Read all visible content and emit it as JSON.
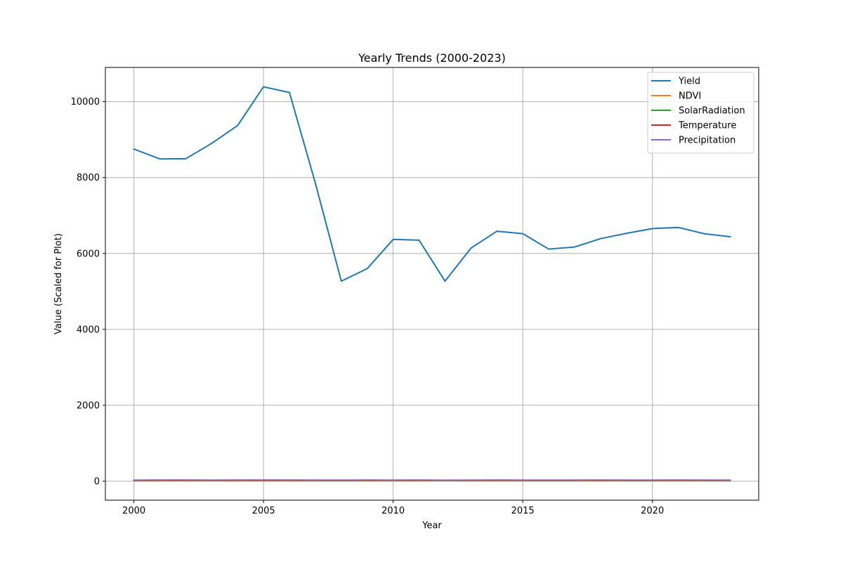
{
  "chart_data": {
    "type": "line",
    "title": "Yearly Trends (2000-2023)",
    "xlabel": "Year",
    "ylabel": "Value (Scaled for Plot)",
    "xlim": [
      1998.9,
      2024.1
    ],
    "ylim": [
      -500,
      10900
    ],
    "x_ticks": [
      2000,
      2005,
      2010,
      2015,
      2020
    ],
    "y_ticks": [
      0,
      2000,
      4000,
      6000,
      8000,
      10000
    ],
    "grid": true,
    "legend_position": "top-right",
    "x": [
      2000,
      2001,
      2002,
      2003,
      2004,
      2005,
      2006,
      2007,
      2008,
      2009,
      2010,
      2011,
      2012,
      2013,
      2014,
      2015,
      2016,
      2017,
      2018,
      2019,
      2020,
      2021,
      2022,
      2023
    ],
    "series": [
      {
        "name": "Yield",
        "color": "#1f77b4",
        "values": [
          8750,
          8490,
          8495,
          8900,
          9370,
          10390,
          10240,
          7850,
          5270,
          5600,
          6370,
          6350,
          5270,
          6140,
          6585,
          6520,
          6115,
          6170,
          6390,
          6530,
          6655,
          6685,
          6520,
          6440
        ]
      },
      {
        "name": "NDVI",
        "color": "#ff7f0e",
        "values": [
          10,
          10,
          10,
          10,
          10,
          10,
          10,
          10,
          10,
          10,
          10,
          10,
          10,
          10,
          10,
          10,
          10,
          10,
          10,
          10,
          10,
          10,
          10,
          10
        ]
      },
      {
        "name": "SolarRadiation",
        "color": "#2ca02c",
        "values": [
          20,
          20,
          20,
          20,
          20,
          20,
          20,
          20,
          20,
          20,
          20,
          20,
          20,
          20,
          20,
          20,
          20,
          20,
          20,
          20,
          20,
          20,
          20,
          20
        ]
      },
      {
        "name": "Temperature",
        "color": "#d62728",
        "values": [
          25,
          25,
          25,
          25,
          25,
          25,
          25,
          25,
          25,
          25,
          25,
          25,
          25,
          25,
          25,
          25,
          25,
          25,
          25,
          25,
          25,
          25,
          25,
          25
        ]
      },
      {
        "name": "Precipitation",
        "color": "#9467bd",
        "values": [
          30,
          32,
          31,
          30,
          33,
          32,
          31,
          30,
          29,
          31,
          30,
          32,
          28,
          30,
          31,
          30,
          29,
          30,
          31,
          30,
          30,
          31,
          30,
          30
        ]
      }
    ]
  }
}
